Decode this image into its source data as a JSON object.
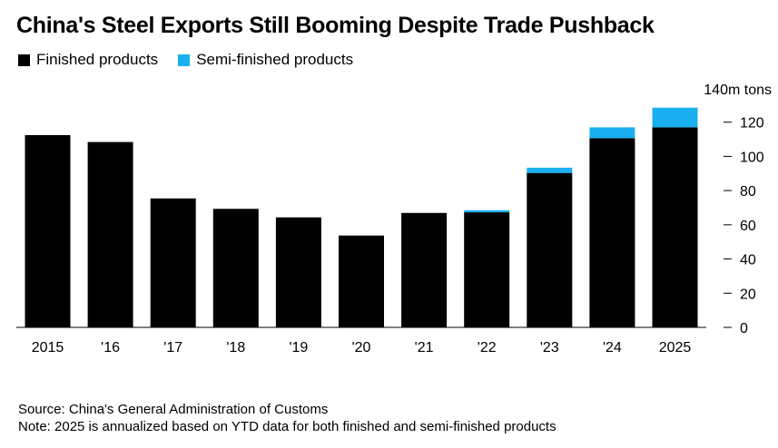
{
  "title": "China's Steel Exports Still Booming Despite Trade Pushback",
  "chart_data": {
    "type": "bar",
    "stacked": true,
    "categories": [
      "2015",
      "'16",
      "'17",
      "'18",
      "'19",
      "'20",
      "'21",
      "'22",
      "'23",
      "'24",
      "2025"
    ],
    "series": [
      {
        "name": "Finished products",
        "color": "#000000",
        "values": [
          112.4,
          108.4,
          75.4,
          69.3,
          64.3,
          53.7,
          66.9,
          67.3,
          90.3,
          110.7,
          117.0
        ]
      },
      {
        "name": "Semi-finished products",
        "color": "#1ab0f0",
        "values": [
          0,
          0,
          0,
          0,
          0,
          0,
          0,
          1.2,
          3.1,
          6.3,
          11.5
        ]
      }
    ],
    "y_unit_label": "140m tons",
    "yticks": [
      0,
      20,
      40,
      60,
      80,
      100,
      120
    ],
    "ylim": [
      0,
      140
    ],
    "legend_position": "top-left",
    "grid": false
  },
  "footer": {
    "source": "Source: China's General Administration of Customs",
    "note": "Note: 2025 is annualized based on YTD data for both finished and semi-finished products"
  }
}
